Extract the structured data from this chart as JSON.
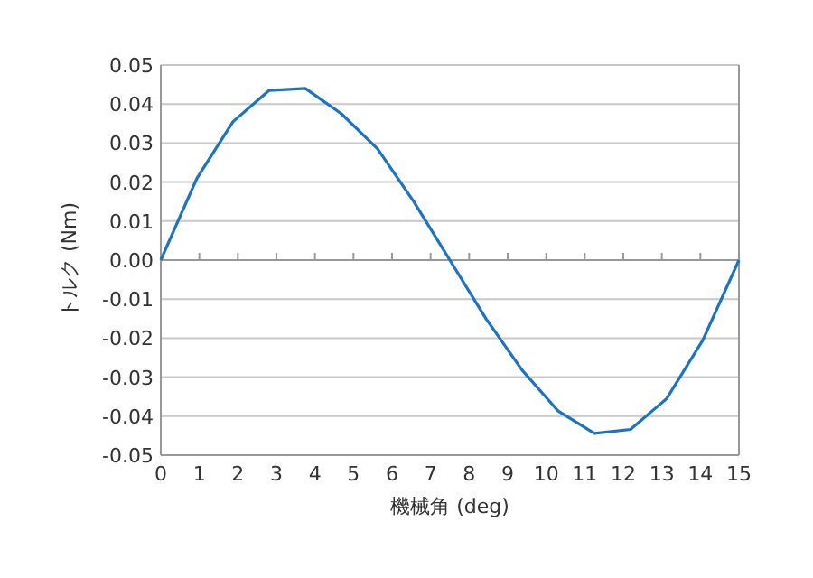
{
  "chart_data": {
    "type": "line",
    "xlabel": "機械角 (deg)",
    "ylabel": "トルク (Nm)",
    "x": [
      0,
      0.9375,
      1.875,
      2.8125,
      3.75,
      4.6875,
      5.625,
      6.5625,
      7.5,
      8.4375,
      9.375,
      10.3125,
      11.25,
      12.1875,
      13.125,
      14.0625,
      15
    ],
    "series": [
      {
        "color": "#1a73c4",
        "values": [
          0,
          0.021,
          0.0355,
          0.0435,
          0.044,
          0.0375,
          0.0285,
          0.015,
          0,
          -0.015,
          -0.0282,
          -0.0387,
          -0.0444,
          -0.0434,
          -0.0355,
          -0.0205,
          0
        ]
      }
    ],
    "xlim": [
      0,
      15
    ],
    "xticks": [
      0,
      1,
      2,
      3,
      4,
      5,
      6,
      7,
      8,
      9,
      10,
      11,
      12,
      13,
      14,
      15
    ],
    "ylim": [
      -0.05,
      0.05
    ],
    "yticks": [
      {
        "value": 0.05,
        "label": "0.05"
      },
      {
        "value": 0.04,
        "label": "0.04"
      },
      {
        "value": 0.03,
        "label": "0.03"
      },
      {
        "value": 0.02,
        "label": "0.02"
      },
      {
        "value": 0.01,
        "label": "0.01"
      },
      {
        "value": 0,
        "label": "0.00"
      },
      {
        "value": -0.01,
        "label": "-0.01"
      },
      {
        "value": -0.02,
        "label": "-0.02"
      },
      {
        "value": -0.03,
        "label": "-0.03"
      },
      {
        "value": -0.04,
        "label": "-0.04"
      },
      {
        "value": -0.05,
        "label": "-0.05"
      }
    ],
    "grid": "y",
    "marker": "none",
    "line_style": "solid"
  }
}
